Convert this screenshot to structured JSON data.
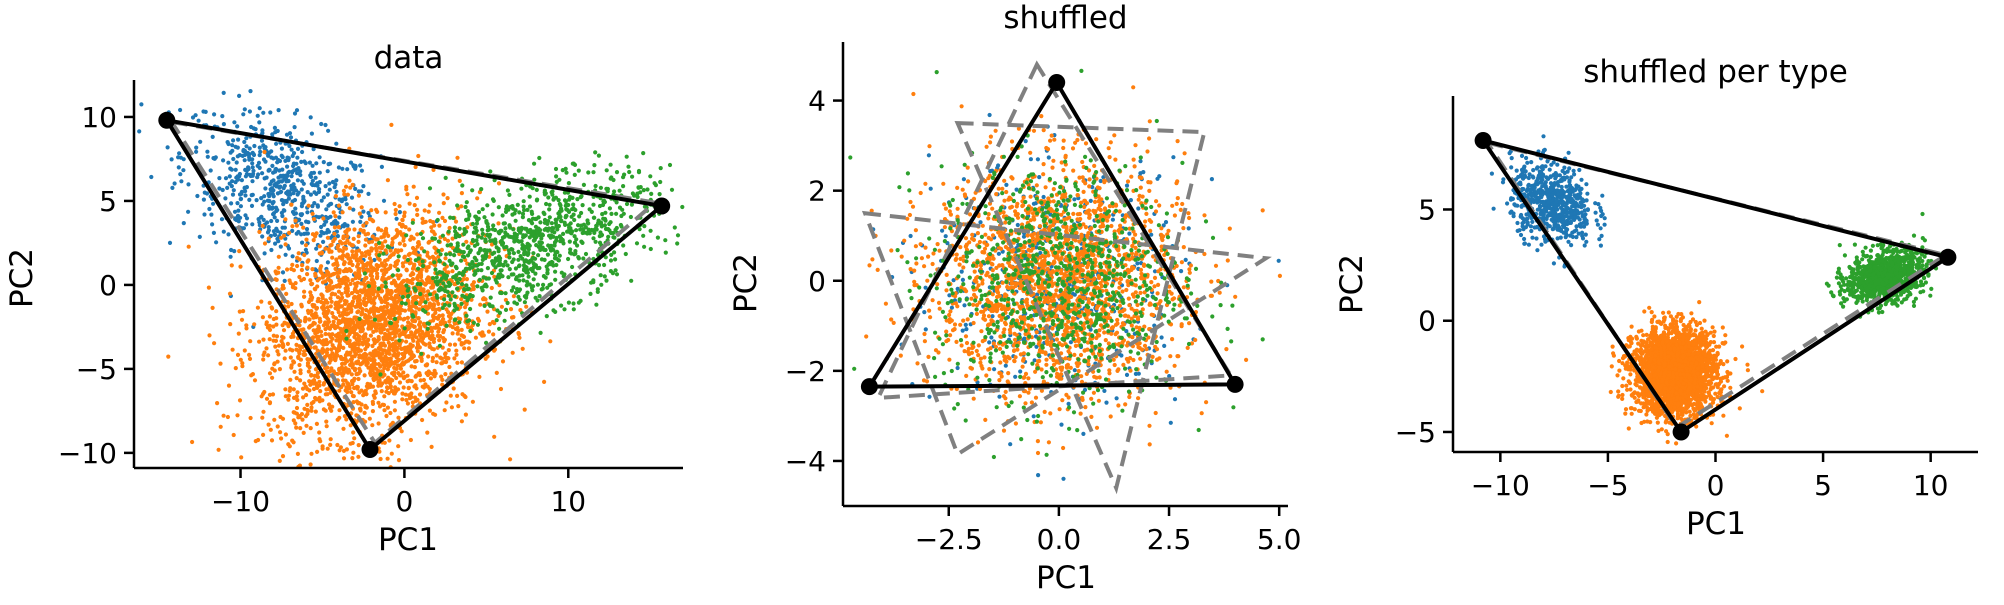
{
  "colors": {
    "type_a": "#1f77b4",
    "type_b": "#ff7f0e",
    "type_c": "#2ca02c",
    "hull": "#000000",
    "reference_triangle": "#808080"
  },
  "chart_data": [
    {
      "type": "scatter",
      "title": "data",
      "xlabel": "PC1",
      "ylabel": "PC2",
      "xlim": [
        -16.5,
        17.0
      ],
      "ylim": [
        -10.9,
        12.2
      ],
      "xticks": [
        -10,
        0,
        10
      ],
      "xtick_labels": [
        "−10",
        "0",
        "10"
      ],
      "yticks": [
        -10,
        -5,
        0,
        5,
        10
      ],
      "ytick_labels": [
        "−10",
        "−5",
        "0",
        "5",
        "10"
      ],
      "grid": false,
      "clusters": [
        {
          "color_key": "type_a",
          "count": 650,
          "center": [
            -7.5,
            5.5
          ],
          "spread": [
            3.0,
            2.4
          ],
          "corr": -0.45
        },
        {
          "color_key": "type_b",
          "count": 2600,
          "center": [
            -2.0,
            -2.3
          ],
          "spread": [
            3.3,
            3.3
          ],
          "corr": 0.2
        },
        {
          "color_key": "type_c",
          "count": 1000,
          "center": [
            7.5,
            2.3
          ],
          "spread": [
            4.0,
            2.2
          ],
          "corr": 0.55
        }
      ],
      "archetypes": [
        [
          -14.5,
          9.8
        ],
        [
          15.7,
          4.7
        ],
        [
          -2.1,
          -9.8
        ]
      ],
      "reference_triangle": [
        [
          -14.2,
          9.7
        ],
        [
          15.3,
          4.9
        ],
        [
          -1.8,
          -9.4
        ]
      ]
    },
    {
      "type": "scatter",
      "title": "shuffled",
      "xlabel": "PC1",
      "ylabel": "PC2",
      "xlim": [
        -4.9,
        5.2
      ],
      "ylim": [
        -5.0,
        5.3
      ],
      "xticks": [
        -2.5,
        0.0,
        2.5,
        5.0
      ],
      "xtick_labels": [
        "−2.5",
        "0.0",
        "2.5",
        "5.0"
      ],
      "yticks": [
        -4,
        -2,
        0,
        2,
        4
      ],
      "ytick_labels": [
        "−4",
        "−2",
        "0",
        "2",
        "4"
      ],
      "grid": false,
      "clusters": [
        {
          "color_key": "type_a",
          "count": 500,
          "center": [
            0.0,
            0.0
          ],
          "spread": [
            1.4,
            1.3
          ],
          "corr": 0.0
        },
        {
          "color_key": "type_b",
          "count": 2000,
          "center": [
            0.0,
            0.0
          ],
          "spread": [
            1.4,
            1.3
          ],
          "corr": 0.0
        },
        {
          "color_key": "type_c",
          "count": 800,
          "center": [
            0.0,
            0.0
          ],
          "spread": [
            1.4,
            1.3
          ],
          "corr": 0.0
        }
      ],
      "archetypes": [
        [
          -0.05,
          4.4
        ],
        [
          -4.3,
          -2.35
        ],
        [
          4.0,
          -2.3
        ]
      ],
      "reference_triangles": [
        [
          [
            -0.5,
            4.8
          ],
          [
            -4.1,
            -2.6
          ],
          [
            3.9,
            -2.1
          ]
        ],
        [
          [
            -2.3,
            3.5
          ],
          [
            3.3,
            3.3
          ],
          [
            1.3,
            -4.6
          ]
        ],
        [
          [
            -4.4,
            1.5
          ],
          [
            4.7,
            0.5
          ],
          [
            -2.3,
            -3.85
          ]
        ]
      ]
    },
    {
      "type": "scatter",
      "title": "shuffled per type",
      "xlabel": "PC1",
      "ylabel": "PC2",
      "xlim": [
        -12.2,
        12.2
      ],
      "ylim": [
        -5.9,
        10.1
      ],
      "xticks": [
        -10,
        -5,
        0,
        5,
        10
      ],
      "xtick_labels": [
        "−10",
        "−5",
        "0",
        "5",
        "10"
      ],
      "yticks": [
        -5,
        0,
        5
      ],
      "ytick_labels": [
        "−5",
        "0",
        "5"
      ],
      "grid": false,
      "clusters": [
        {
          "color_key": "type_a",
          "count": 650,
          "center": [
            -7.6,
            5.3
          ],
          "spread": [
            0.95,
            0.9
          ],
          "corr": -0.2
        },
        {
          "color_key": "type_b",
          "count": 2600,
          "center": [
            -1.9,
            -2.3
          ],
          "spread": [
            0.95,
            0.95
          ],
          "corr": 0.0
        },
        {
          "color_key": "type_c",
          "count": 1000,
          "center": [
            7.9,
            2.0
          ],
          "spread": [
            0.9,
            0.6
          ],
          "corr": 0.3
        }
      ],
      "archetypes": [
        [
          -10.8,
          8.1
        ],
        [
          10.8,
          2.85
        ],
        [
          -1.6,
          -5.0
        ]
      ],
      "reference_triangle": [
        [
          -10.6,
          8.0
        ],
        [
          10.7,
          2.95
        ],
        [
          -1.8,
          -4.8
        ]
      ]
    }
  ]
}
